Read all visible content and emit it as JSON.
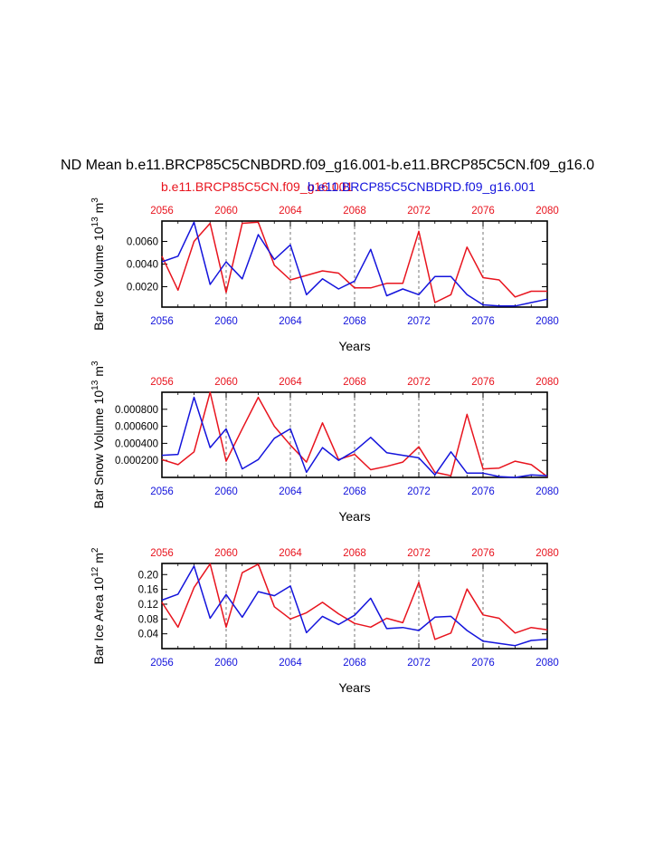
{
  "title": "ND Mean b.e11.BRCP85C5CNBDRD.f09_g16.001-b.e11.BRCP85C5CN.f09_g16.0",
  "legend": {
    "red_label": "b.e11.BRCP85C5CN.f09_g16.001",
    "blue_label": "b.e11.BRCP85C5CNBDRD.f09_g16.001"
  },
  "colors": {
    "red": "#e8141e",
    "blue": "#1414dc",
    "axis": "#000000"
  },
  "chart_data": [
    {
      "type": "line",
      "ylabel_main": "Bar Ice Volume 10",
      "ylabel_exp": "13",
      "ylabel_unit": "m",
      "ylabel_unit_exp": "3",
      "xlabel": "Years",
      "xlim": [
        2056,
        2080
      ],
      "ylim": [
        0.0002,
        0.0078
      ],
      "yticks": [
        0.002,
        0.004,
        0.006
      ],
      "ytick_labels": [
        "0.0020",
        "0.0040",
        "0.0060"
      ],
      "xticks": [
        2056,
        2060,
        2064,
        2068,
        2072,
        2076,
        2080
      ],
      "xtick_labels": [
        "2056",
        "2060",
        "2064",
        "2068",
        "2072",
        "2076",
        "2080"
      ],
      "dashed_years": [
        2060,
        2064,
        2068,
        2072,
        2076
      ],
      "x": [
        2056,
        2057,
        2058,
        2059,
        2060,
        2061,
        2062,
        2063,
        2064,
        2065,
        2066,
        2067,
        2068,
        2069,
        2070,
        2071,
        2072,
        2073,
        2074,
        2075,
        2076,
        2077,
        2078,
        2079,
        2080
      ],
      "series": [
        {
          "name": "b.e11.BRCP85C5CN.f09_g16.001",
          "color": "red",
          "values": [
            0.0047,
            0.0017,
            0.006,
            0.0076,
            0.0015,
            0.0076,
            0.0077,
            0.0039,
            0.0026,
            0.003,
            0.0034,
            0.0032,
            0.0019,
            0.0019,
            0.0023,
            0.0023,
            0.0069,
            0.0006,
            0.0013,
            0.0055,
            0.0028,
            0.0026,
            0.0011,
            0.0016,
            0.0016
          ]
        },
        {
          "name": "b.e11.BRCP85C5CNBDRD.f09_g16.001",
          "color": "blue",
          "values": [
            0.0042,
            0.0047,
            0.0077,
            0.0022,
            0.0042,
            0.0027,
            0.0066,
            0.0044,
            0.0057,
            0.0013,
            0.0027,
            0.0018,
            0.0025,
            0.0053,
            0.0012,
            0.0018,
            0.0013,
            0.0029,
            0.0029,
            0.0013,
            0.0004,
            0.0003,
            0.0003,
            0.0006,
            0.0009
          ]
        }
      ]
    },
    {
      "type": "line",
      "ylabel_main": "Bar Snow Volume 10",
      "ylabel_exp": "13",
      "ylabel_unit": "m",
      "ylabel_unit_exp": "3",
      "xlabel": "Years",
      "xlim": [
        2056,
        2080
      ],
      "ylim": [
        0.0,
        0.001
      ],
      "yticks": [
        0.0002,
        0.0004,
        0.0006,
        0.0008
      ],
      "ytick_labels": [
        "0.000200",
        "0.000400",
        "0.000600",
        "0.000800"
      ],
      "xticks": [
        2056,
        2060,
        2064,
        2068,
        2072,
        2076,
        2080
      ],
      "xtick_labels": [
        "2056",
        "2060",
        "2064",
        "2068",
        "2072",
        "2076",
        "2080"
      ],
      "dashed_years": [
        2060,
        2064,
        2068,
        2072,
        2076
      ],
      "x": [
        2056,
        2057,
        2058,
        2059,
        2060,
        2061,
        2062,
        2063,
        2064,
        2065,
        2066,
        2067,
        2068,
        2069,
        2070,
        2071,
        2072,
        2073,
        2074,
        2075,
        2076,
        2077,
        2078,
        2079,
        2080
      ],
      "series": [
        {
          "name": "b.e11.BRCP85C5CN.f09_g16.001",
          "color": "red",
          "values": [
            0.00021,
            0.00015,
            0.0003,
            0.001,
            0.00019,
            0.00057,
            0.00094,
            0.0006,
            0.00038,
            0.00018,
            0.00064,
            0.00021,
            0.00027,
            9e-05,
            0.00013,
            0.00018,
            0.00036,
            6e-05,
            2e-05,
            0.00074,
            0.0001,
            0.00011,
            0.00019,
            0.00015,
            1e-05
          ]
        },
        {
          "name": "b.e11.BRCP85C5CNBDRD.f09_g16.001",
          "color": "blue",
          "values": [
            0.00026,
            0.00027,
            0.00094,
            0.00035,
            0.00057,
            0.0001,
            0.00021,
            0.00046,
            0.00057,
            6e-05,
            0.00035,
            0.0002,
            0.00031,
            0.00047,
            0.00029,
            0.00026,
            0.00023,
            3e-05,
            0.0003,
            5e-05,
            5e-05,
            1e-05,
            0.0,
            3e-05,
            2e-05
          ]
        }
      ]
    },
    {
      "type": "line",
      "ylabel_main": "Bar Ice Area 10",
      "ylabel_exp": "12",
      "ylabel_unit": "m",
      "ylabel_unit_exp": "2",
      "xlabel": "Years",
      "xlim": [
        2056,
        2080
      ],
      "ylim": [
        0.0,
        0.23
      ],
      "yticks": [
        0.04,
        0.08,
        0.12,
        0.16,
        0.2
      ],
      "ytick_labels": [
        "0.04",
        "0.08",
        "0.12",
        "0.16",
        "0.20"
      ],
      "xticks": [
        2056,
        2060,
        2064,
        2068,
        2072,
        2076,
        2080
      ],
      "xtick_labels": [
        "2056",
        "2060",
        "2064",
        "2068",
        "2072",
        "2076",
        "2080"
      ],
      "dashed_years": [
        2060,
        2064,
        2068,
        2072,
        2076
      ],
      "x": [
        2056,
        2057,
        2058,
        2059,
        2060,
        2061,
        2062,
        2063,
        2064,
        2065,
        2066,
        2067,
        2068,
        2069,
        2070,
        2071,
        2072,
        2073,
        2074,
        2075,
        2076,
        2077,
        2078,
        2079,
        2080
      ],
      "series": [
        {
          "name": "b.e11.BRCP85C5CN.f09_g16.001",
          "color": "red",
          "values": [
            0.125,
            0.058,
            0.165,
            0.229,
            0.058,
            0.205,
            0.228,
            0.113,
            0.08,
            0.097,
            0.125,
            0.094,
            0.068,
            0.058,
            0.082,
            0.07,
            0.179,
            0.025,
            0.042,
            0.161,
            0.091,
            0.082,
            0.042,
            0.057,
            0.051
          ]
        },
        {
          "name": "b.e11.BRCP85C5CNBDRD.f09_g16.001",
          "color": "blue",
          "values": [
            0.131,
            0.147,
            0.223,
            0.082,
            0.146,
            0.085,
            0.154,
            0.143,
            0.169,
            0.043,
            0.087,
            0.065,
            0.09,
            0.136,
            0.054,
            0.057,
            0.049,
            0.085,
            0.087,
            0.049,
            0.02,
            0.014,
            0.008,
            0.022,
            0.025
          ]
        }
      ]
    }
  ]
}
